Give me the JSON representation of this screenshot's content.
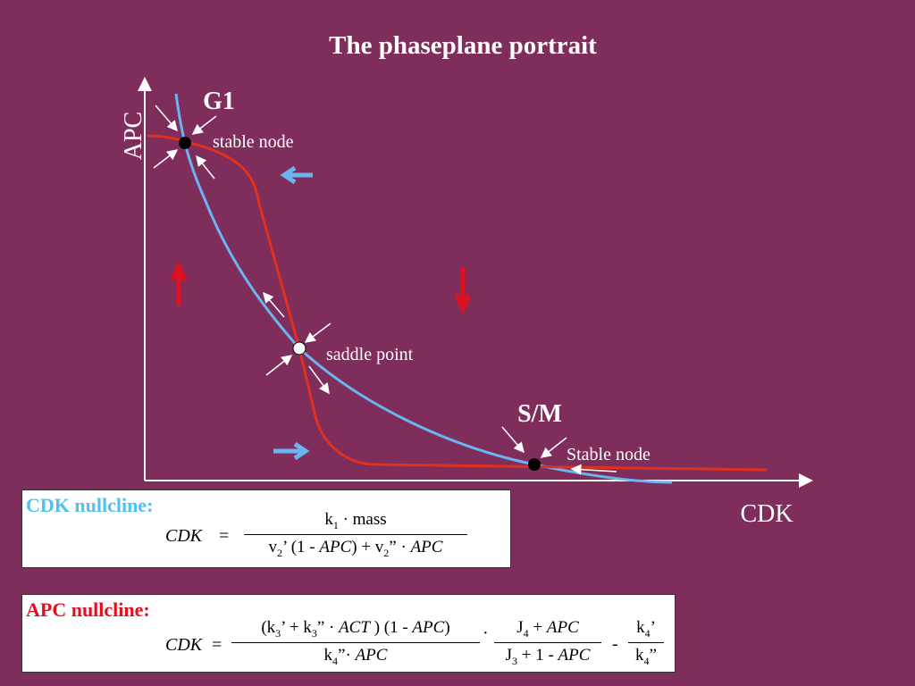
{
  "title": "The phaseplane portrait",
  "axes": {
    "x_label": "CDK",
    "y_label": "APC"
  },
  "points": [
    {
      "label": "G1",
      "note": "stable node"
    },
    {
      "note": "saddle point"
    },
    {
      "label": "S/M",
      "note": "Stable node"
    }
  ],
  "cdk_box": {
    "heading": "CDK nullcline:",
    "lhs": "CDK",
    "eq": "=",
    "numerator": [
      "k",
      "1",
      " · mass"
    ],
    "denominator": [
      "v",
      "2",
      "’ (1 - ",
      "APC",
      ") + v",
      "2",
      "” · ",
      "APC"
    ]
  },
  "apc_box": {
    "heading": "APC nullcline:",
    "lhs": "CDK",
    "eq": "=",
    "frac1_num": [
      "(k",
      "3",
      "’ + k",
      "3",
      "” · ",
      "ACT",
      " ) (1 - ",
      "APC",
      ")"
    ],
    "frac1_den": [
      "k",
      "4",
      "”· ",
      "APC"
    ],
    "dot": "·",
    "frac2_num": [
      "J",
      "4",
      " + ",
      "APC"
    ],
    "frac2_den": [
      "J",
      "3",
      " + 1 - ",
      "APC"
    ],
    "minus": "-",
    "frac3_num": [
      "k",
      "4",
      "’"
    ],
    "frac3_den": [
      "k",
      "4",
      "”"
    ]
  }
}
